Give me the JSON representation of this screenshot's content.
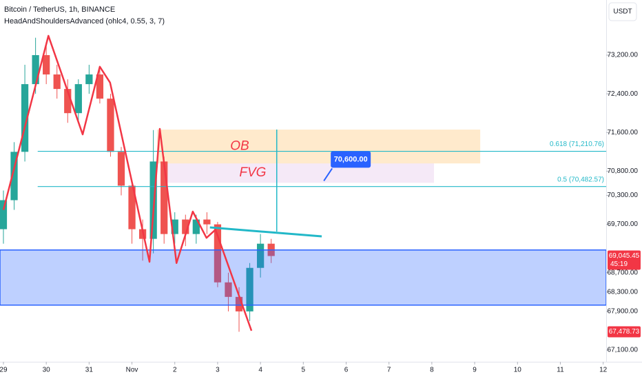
{
  "chart_data": {
    "type": "candlestick",
    "title": "Bitcoin / TetherUS, 1h, BINANCE",
    "indicator": "HeadAndShouldersAdvanced (ohlc4, 0.55, 3, 7)",
    "currency": "USDT",
    "xlim": [
      -0.08,
      14.07
    ],
    "xticks": [
      {
        "value": 0,
        "label": "29"
      },
      {
        "value": 1,
        "label": "30"
      },
      {
        "value": 2,
        "label": "31"
      },
      {
        "value": 3,
        "label": "Nov"
      },
      {
        "value": 4,
        "label": "2"
      },
      {
        "value": 5,
        "label": "3"
      },
      {
        "value": 6,
        "label": "4"
      },
      {
        "value": 7,
        "label": "5"
      },
      {
        "value": 8,
        "label": "6"
      },
      {
        "value": 9,
        "label": "7"
      },
      {
        "value": 10,
        "label": "8"
      },
      {
        "value": 11,
        "label": "9"
      },
      {
        "value": 12,
        "label": "10"
      },
      {
        "value": 13,
        "label": "11"
      },
      {
        "value": 14,
        "label": "12"
      }
    ],
    "ylim": [
      66858,
      74340
    ],
    "yticks": [
      {
        "value": 73200,
        "label": "73,200.00"
      },
      {
        "value": 72400,
        "label": "72,400.00"
      },
      {
        "value": 71600,
        "label": "71,600.00"
      },
      {
        "value": 70800,
        "label": "70,800.00"
      },
      {
        "value": 70300,
        "label": "70,300.00"
      },
      {
        "value": 69700,
        "label": "69,700.00"
      },
      {
        "value": 68700,
        "label": "68,700.00"
      },
      {
        "value": 68300,
        "label": "68,300.00"
      },
      {
        "value": 67900,
        "label": "67,900.00"
      },
      {
        "value": 67100,
        "label": "67,100.00"
      }
    ],
    "candles": {
      "up_color": "#26a69a",
      "down_color": "#ef5350",
      "x": [
        0,
        0.25,
        0.5,
        0.75,
        1,
        1.25,
        1.5,
        1.75,
        2,
        2.25,
        2.5,
        2.75,
        3,
        3.25,
        3.5,
        3.75,
        4,
        4.25,
        4.5,
        4.75,
        5,
        5.25,
        5.5,
        5.75,
        6,
        6.25
      ],
      "open": [
        69600,
        70200,
        71200,
        72600,
        73200,
        72800,
        72500,
        72000,
        72600,
        72800,
        72300,
        71200,
        70500,
        69600,
        69400,
        71000,
        69500,
        69800,
        69500,
        69800,
        69700,
        68500,
        68200,
        67900,
        68800,
        69300
      ],
      "high": [
        70400,
        71400,
        73000,
        73560,
        73400,
        73000,
        72700,
        72700,
        73000,
        72900,
        72400,
        71300,
        70600,
        69800,
        71650,
        71100,
        69950,
        69900,
        69900,
        69950,
        69750,
        68700,
        68400,
        68900,
        69500,
        69400
      ],
      "low": [
        69300,
        70000,
        71000,
        72400,
        72600,
        72300,
        71800,
        71850,
        72400,
        72200,
        71100,
        70300,
        69300,
        68950,
        69100,
        69300,
        69300,
        69250,
        69300,
        69500,
        68400,
        67900,
        67478.73,
        67700,
        68600,
        68900
      ],
      "close": [
        70200,
        71200,
        72600,
        73200,
        72800,
        72500,
        72000,
        72600,
        72800,
        72300,
        71200,
        70500,
        69600,
        69400,
        71000,
        69500,
        69800,
        69500,
        69800,
        69700,
        68500,
        68200,
        67900,
        68800,
        69300,
        69045.45
      ]
    },
    "pattern": {
      "color": "#f23645",
      "x": [
        0,
        1.05,
        1.85,
        2.25,
        2.49,
        3.41,
        3.65,
        4.04,
        4.42,
        4.74,
        4.95,
        5.79
      ],
      "y": [
        70000,
        73600,
        71560,
        72960,
        72630,
        68925,
        71675,
        68900,
        69965,
        69420,
        69590,
        67500
      ]
    },
    "boxes": [
      {
        "label": "OB",
        "x_start": 3.585,
        "x_end": 11.13,
        "top": 71660,
        "bottom": 70960,
        "color": "#ff9800"
      },
      {
        "label": "FVG",
        "x_start": 3.73,
        "x_end": 10.05,
        "top": 70960,
        "bottom": 70560,
        "color": "#9c27b0"
      }
    ],
    "zone": {
      "x_start": -0.08,
      "x_end": 14.07,
      "top": 69170,
      "bottom": 68030,
      "color": "#2962ff"
    },
    "fib_levels": [
      {
        "price": 71210.76,
        "label": "0.618 (71,210.76)",
        "x_start": 0.8
      },
      {
        "price": 70482.57,
        "label": "0.5 (70,482.57)",
        "x_start": 0.8
      }
    ],
    "fib_color": "#22b8c8",
    "lines": [
      {
        "x": [
          6.38,
          6.38
        ],
        "y": [
          71660,
          69551
        ]
      },
      {
        "x": [
          4.82,
          7.43
        ],
        "y": [
          69637,
          69451
        ]
      }
    ],
    "note": {
      "x": 7.48,
      "value": 70600,
      "label": "70,600.00",
      "color": "#2962ff"
    },
    "last_price": {
      "value": 69045.45,
      "label": "69,045.45",
      "countdown": "45:19",
      "color": "#f23645"
    },
    "low_price": {
      "value": 67478.73,
      "label": "67,478.73",
      "color": "#f23645"
    }
  }
}
